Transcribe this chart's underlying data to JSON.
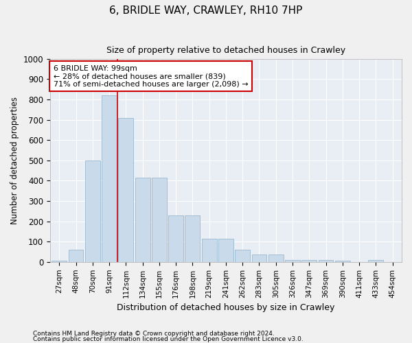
{
  "title1": "6, BRIDLE WAY, CRAWLEY, RH10 7HP",
  "title2": "Size of property relative to detached houses in Crawley",
  "xlabel": "Distribution of detached houses by size in Crawley",
  "ylabel": "Number of detached properties",
  "footnote1": "Contains HM Land Registry data © Crown copyright and database right 2024.",
  "footnote2": "Contains public sector information licensed under the Open Government Licence v3.0.",
  "bar_labels": [
    "27sqm",
    "48sqm",
    "70sqm",
    "91sqm",
    "112sqm",
    "134sqm",
    "155sqm",
    "176sqm",
    "198sqm",
    "219sqm",
    "241sqm",
    "262sqm",
    "283sqm",
    "305sqm",
    "326sqm",
    "347sqm",
    "369sqm",
    "390sqm",
    "411sqm",
    "433sqm",
    "454sqm"
  ],
  "bar_values": [
    5,
    60,
    500,
    820,
    710,
    415,
    415,
    230,
    230,
    115,
    115,
    60,
    35,
    35,
    10,
    10,
    10,
    5,
    0,
    8,
    0
  ],
  "bar_color": "#c9daea",
  "bar_edge_color": "#9ab8d0",
  "property_line_x": 3.5,
  "annotation_line1": "6 BRIDLE WAY: 99sqm",
  "annotation_line2": "← 28% of detached houses are smaller (839)",
  "annotation_line3": "71% of semi-detached houses are larger (2,098) →",
  "annotation_box_color": "#ffffff",
  "annotation_box_edge": "#cc0000",
  "line_color": "#cc0000",
  "ylim": [
    0,
    1000
  ],
  "fig_color": "#f0f0f0",
  "ax_background_color": "#e8eef4",
  "grid_color": "#ffffff",
  "yticks": [
    0,
    100,
    200,
    300,
    400,
    500,
    600,
    700,
    800,
    900,
    1000
  ]
}
